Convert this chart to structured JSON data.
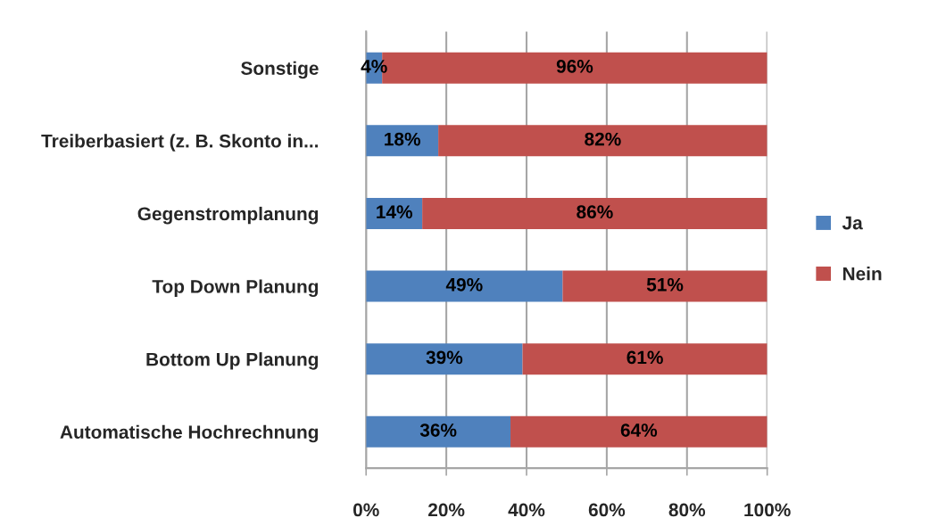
{
  "chart_data": {
    "type": "bar",
    "orientation": "horizontal",
    "stacked": true,
    "categories": [
      "Sonstige",
      "Treiberbasiert (z. B. Skonto in...",
      "Gegenstromplanung",
      "Top Down Planung",
      "Bottom Up Planung",
      "Automatische Hochrechnung"
    ],
    "series": [
      {
        "name": "Ja",
        "color": "#4f81bd",
        "values": [
          4,
          18,
          14,
          49,
          39,
          36
        ],
        "value_labels": [
          "4%",
          "18%",
          "14%",
          "49%",
          "39%",
          "36%"
        ]
      },
      {
        "name": "Nein",
        "color": "#c0504d",
        "values": [
          96,
          82,
          86,
          51,
          61,
          64
        ],
        "value_labels": [
          "96%",
          "82%",
          "86%",
          "51%",
          "61%",
          "64%"
        ]
      }
    ],
    "xlim": [
      0,
      100
    ],
    "xticks": [
      {
        "value": 0,
        "label": "0%"
      },
      {
        "value": 20,
        "label": "20%"
      },
      {
        "value": 40,
        "label": "40%"
      },
      {
        "value": 60,
        "label": "60%"
      },
      {
        "value": 80,
        "label": "80%"
      },
      {
        "value": 100,
        "label": "100%"
      }
    ],
    "grid": "x",
    "legend": "right"
  }
}
